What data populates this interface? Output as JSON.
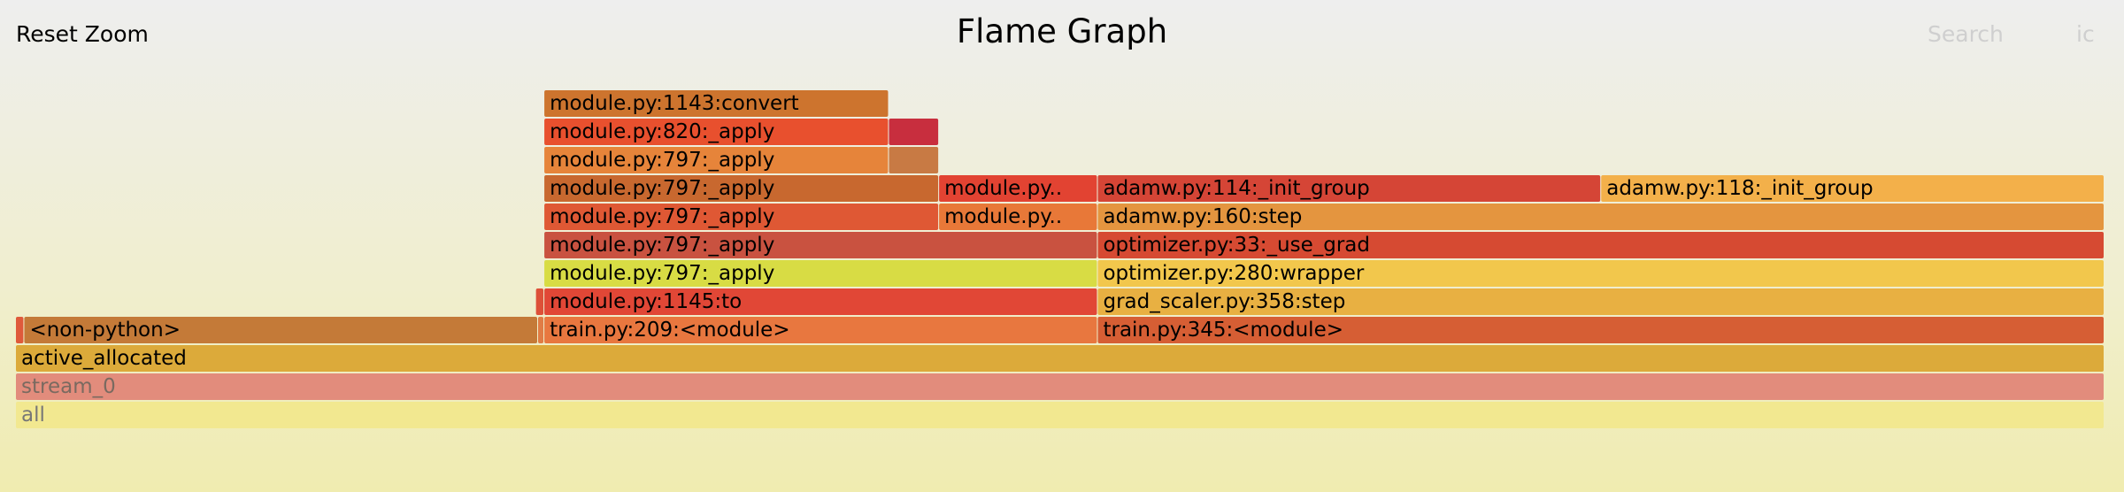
{
  "header": {
    "reset_zoom": "Reset Zoom",
    "title": "Flame Graph",
    "search": "Search",
    "ic": "ic"
  },
  "chart_data": {
    "type": "flame",
    "total": 1000,
    "frames": [
      {
        "label": "all",
        "depth": 0,
        "start": 0,
        "end": 1000,
        "color": "#f2e890",
        "text_color": "#777777"
      },
      {
        "label": "stream_0",
        "depth": 1,
        "start": 0,
        "end": 1000,
        "color": "#e28c7c",
        "text_color": "#7a6a60"
      },
      {
        "label": "active_allocated",
        "depth": 2,
        "start": 0,
        "end": 1000,
        "color": "#dcaa3a"
      },
      {
        "label": "",
        "depth": 3,
        "start": 0,
        "end": 4,
        "color": "#df5a3b"
      },
      {
        "label": "<non-python>",
        "depth": 3,
        "start": 4,
        "end": 250,
        "color": "#c47a38"
      },
      {
        "label": "",
        "depth": 3,
        "start": 250,
        "end": 253,
        "color": "#e07c45"
      },
      {
        "label": "train.py:209:<module>",
        "depth": 3,
        "start": 253,
        "end": 518,
        "color": "#e8773f"
      },
      {
        "label": "train.py:345:<module>",
        "depth": 3,
        "start": 518,
        "end": 1000,
        "color": "#d65e34"
      },
      {
        "label": "",
        "depth": 4,
        "start": 249,
        "end": 253,
        "color": "#dd5038"
      },
      {
        "label": "module.py:1145:to",
        "depth": 4,
        "start": 253,
        "end": 518,
        "color": "#e14736"
      },
      {
        "label": "grad_scaler.py:358:step",
        "depth": 4,
        "start": 518,
        "end": 1000,
        "color": "#e8b042"
      },
      {
        "label": "module.py:797:_apply",
        "depth": 5,
        "start": 253,
        "end": 518,
        "color": "#d8dc44"
      },
      {
        "label": "optimizer.py:280:wrapper",
        "depth": 5,
        "start": 518,
        "end": 1000,
        "color": "#f2c74c"
      },
      {
        "label": "module.py:797:_apply",
        "depth": 6,
        "start": 253,
        "end": 518,
        "color": "#c95240"
      },
      {
        "label": "optimizer.py:33:_use_grad",
        "depth": 6,
        "start": 518,
        "end": 1000,
        "color": "#d64a32"
      },
      {
        "label": "module.py:797:_apply",
        "depth": 7,
        "start": 253,
        "end": 442,
        "color": "#df5834"
      },
      {
        "label": "module.py..",
        "depth": 7,
        "start": 442,
        "end": 518,
        "color": "#e87838"
      },
      {
        "label": "adamw.py:160:step",
        "depth": 7,
        "start": 518,
        "end": 1000,
        "color": "#e4953f"
      },
      {
        "label": "module.py:797:_apply",
        "depth": 8,
        "start": 253,
        "end": 442,
        "color": "#c8682f"
      },
      {
        "label": "module.py..",
        "depth": 8,
        "start": 442,
        "end": 518,
        "color": "#e24332"
      },
      {
        "label": "adamw.py:114:_init_group",
        "depth": 8,
        "start": 518,
        "end": 759,
        "color": "#d54536"
      },
      {
        "label": "adamw.py:118:_init_group",
        "depth": 8,
        "start": 759,
        "end": 1000,
        "color": "#f3b04a"
      },
      {
        "label": "module.py:797:_apply",
        "depth": 9,
        "start": 253,
        "end": 418,
        "color": "#e6843a"
      },
      {
        "label": "",
        "depth": 9,
        "start": 418,
        "end": 442,
        "color": "#c87a44"
      },
      {
        "label": "module.py:820:_apply",
        "depth": 10,
        "start": 253,
        "end": 418,
        "color": "#e8502e"
      },
      {
        "label": "",
        "depth": 10,
        "start": 418,
        "end": 442,
        "color": "#c82e3e"
      },
      {
        "label": "module.py:1143:convert",
        "depth": 11,
        "start": 253,
        "end": 418,
        "color": "#cd742e"
      }
    ]
  }
}
